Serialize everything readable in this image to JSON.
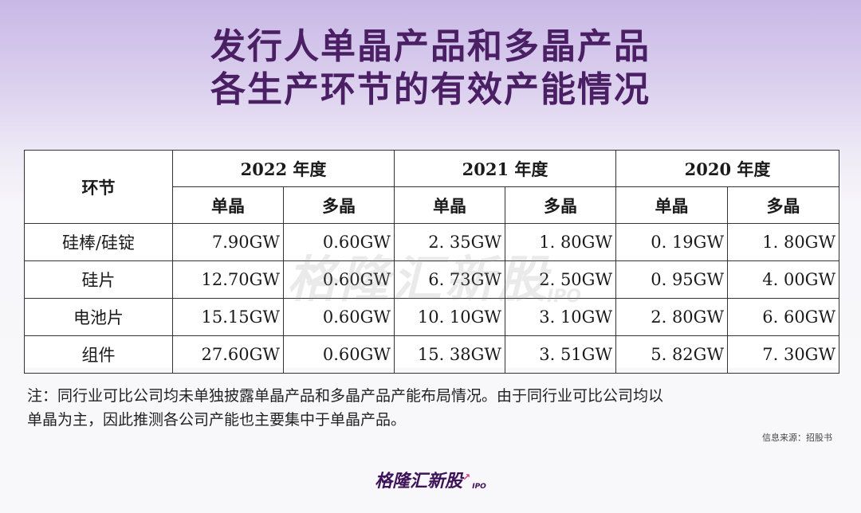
{
  "title": {
    "line1": "发行人单晶产品和多晶产品",
    "line2": "各生产环节的有效产能情况"
  },
  "table": {
    "corner_header": "环节",
    "years": [
      "2022 年度",
      "2021 年度",
      "2020 年度"
    ],
    "sub_headers": [
      "单晶",
      "多晶",
      "单晶",
      "多晶",
      "单晶",
      "多晶"
    ],
    "rows": [
      {
        "name": "硅棒/硅锭",
        "values": [
          "7.90GW",
          "0.60GW",
          "2. 35GW",
          "1. 80GW",
          "0. 19GW",
          "1. 80GW"
        ]
      },
      {
        "name": "硅片",
        "values": [
          "12.70GW",
          "0.60GW",
          "6. 73GW",
          "2. 50GW",
          "0. 95GW",
          "4. 00GW"
        ]
      },
      {
        "name": "电池片",
        "values": [
          "15.15GW",
          "0.60GW",
          "10. 10GW",
          "3. 10GW",
          "2. 80GW",
          "6. 60GW"
        ]
      },
      {
        "name": "组件",
        "values": [
          "27.60GW",
          "0.60GW",
          "15. 38GW",
          "3. 51GW",
          "5. 82GW",
          "7. 30GW"
        ]
      }
    ]
  },
  "note": {
    "line1": "注：同行业可比公司均未单独披露单晶产品和多晶产品产能布局情况。由于同行业可比公司均以",
    "line2": "单晶为主，因此推测各公司产能也主要集中于单晶产品。"
  },
  "source": "信息来源：招股书",
  "watermark": {
    "main": "格隆汇新股",
    "sub": "IPO"
  },
  "brand": {
    "name": "格隆汇新股",
    "tag": "IPO"
  },
  "colors": {
    "title": "#4b1f63",
    "brand": "#3d1258",
    "accent": "#d23b8a"
  }
}
